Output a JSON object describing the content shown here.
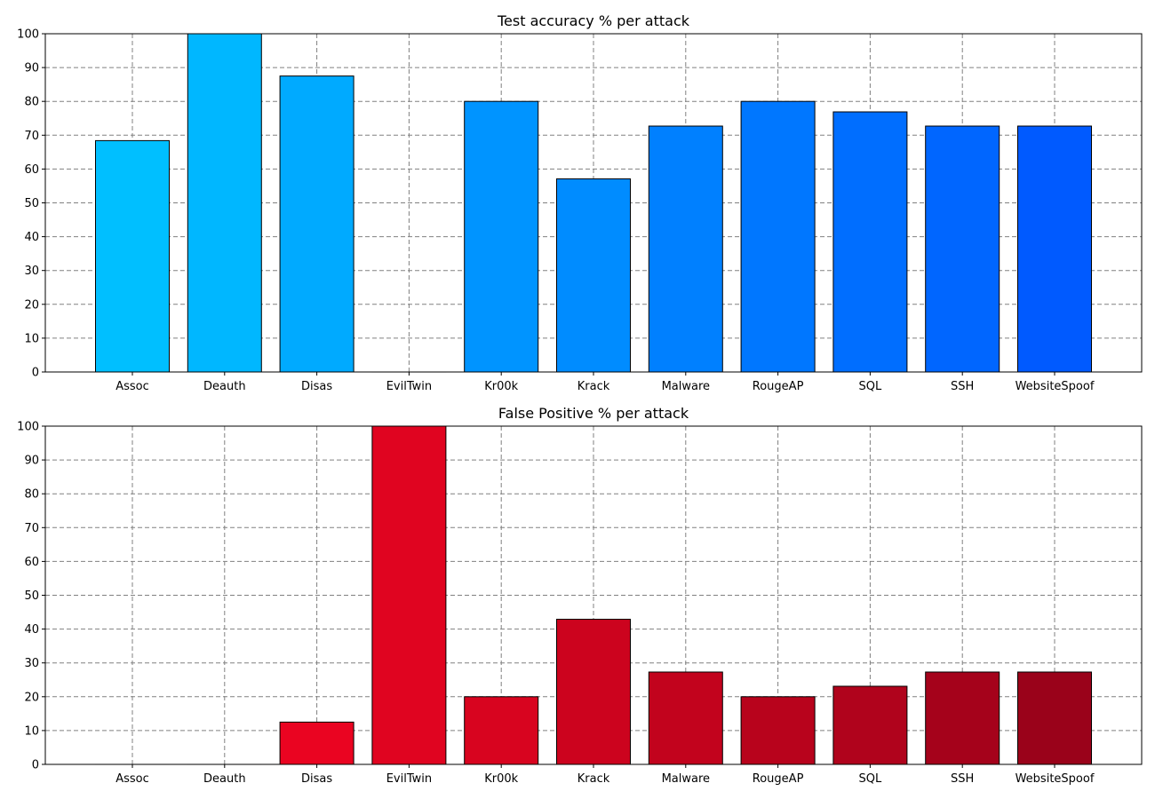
{
  "chart_data": [
    {
      "type": "bar",
      "title": "Test accuracy % per attack",
      "xlabel": "",
      "ylabel": "",
      "categories": [
        "Assoc",
        "Deauth",
        "Disas",
        "EvilTwin",
        "Kr00k",
        "Krack",
        "Malware",
        "RougeAP",
        "SQL",
        "SSH",
        "WebsiteSpoof"
      ],
      "values": [
        68.4,
        100,
        87.5,
        0,
        80,
        57.1,
        72.7,
        80,
        76.9,
        72.7,
        72.7
      ],
      "ylim": [
        0,
        100
      ],
      "yticks": [
        "0",
        "10",
        "20",
        "30",
        "40",
        "50",
        "60",
        "70",
        "80",
        "90",
        "100"
      ],
      "grid": true,
      "colors": [
        "#00bfff",
        "#00b7ff",
        "#00aaff",
        "#009fff",
        "#0094ff",
        "#008cff",
        "#0080ff",
        "#0077ff",
        "#006eff",
        "#0066ff",
        "#005aff"
      ]
    },
    {
      "type": "bar",
      "title": "False Positive % per attack",
      "xlabel": "",
      "ylabel": "",
      "categories": [
        "Assoc",
        "Deauth",
        "Disas",
        "EvilTwin",
        "Kr00k",
        "Krack",
        "Malware",
        "RougeAP",
        "SQL",
        "SSH",
        "WebsiteSpoof"
      ],
      "values": [
        0,
        0,
        12.5,
        100,
        20,
        42.9,
        27.3,
        20,
        23.1,
        27.3,
        27.3
      ],
      "ylim": [
        0,
        100
      ],
      "yticks": [
        "0",
        "10",
        "20",
        "30",
        "40",
        "50",
        "60",
        "70",
        "80",
        "90",
        "100"
      ],
      "grid": true,
      "colors": [
        "#f5051f",
        "#ef0420",
        "#ea0421",
        "#e00420",
        "#d8041f",
        "#cc031e",
        "#c2031d",
        "#b8031c",
        "#b0031c",
        "#a5021b",
        "#9a021a"
      ]
    }
  ]
}
